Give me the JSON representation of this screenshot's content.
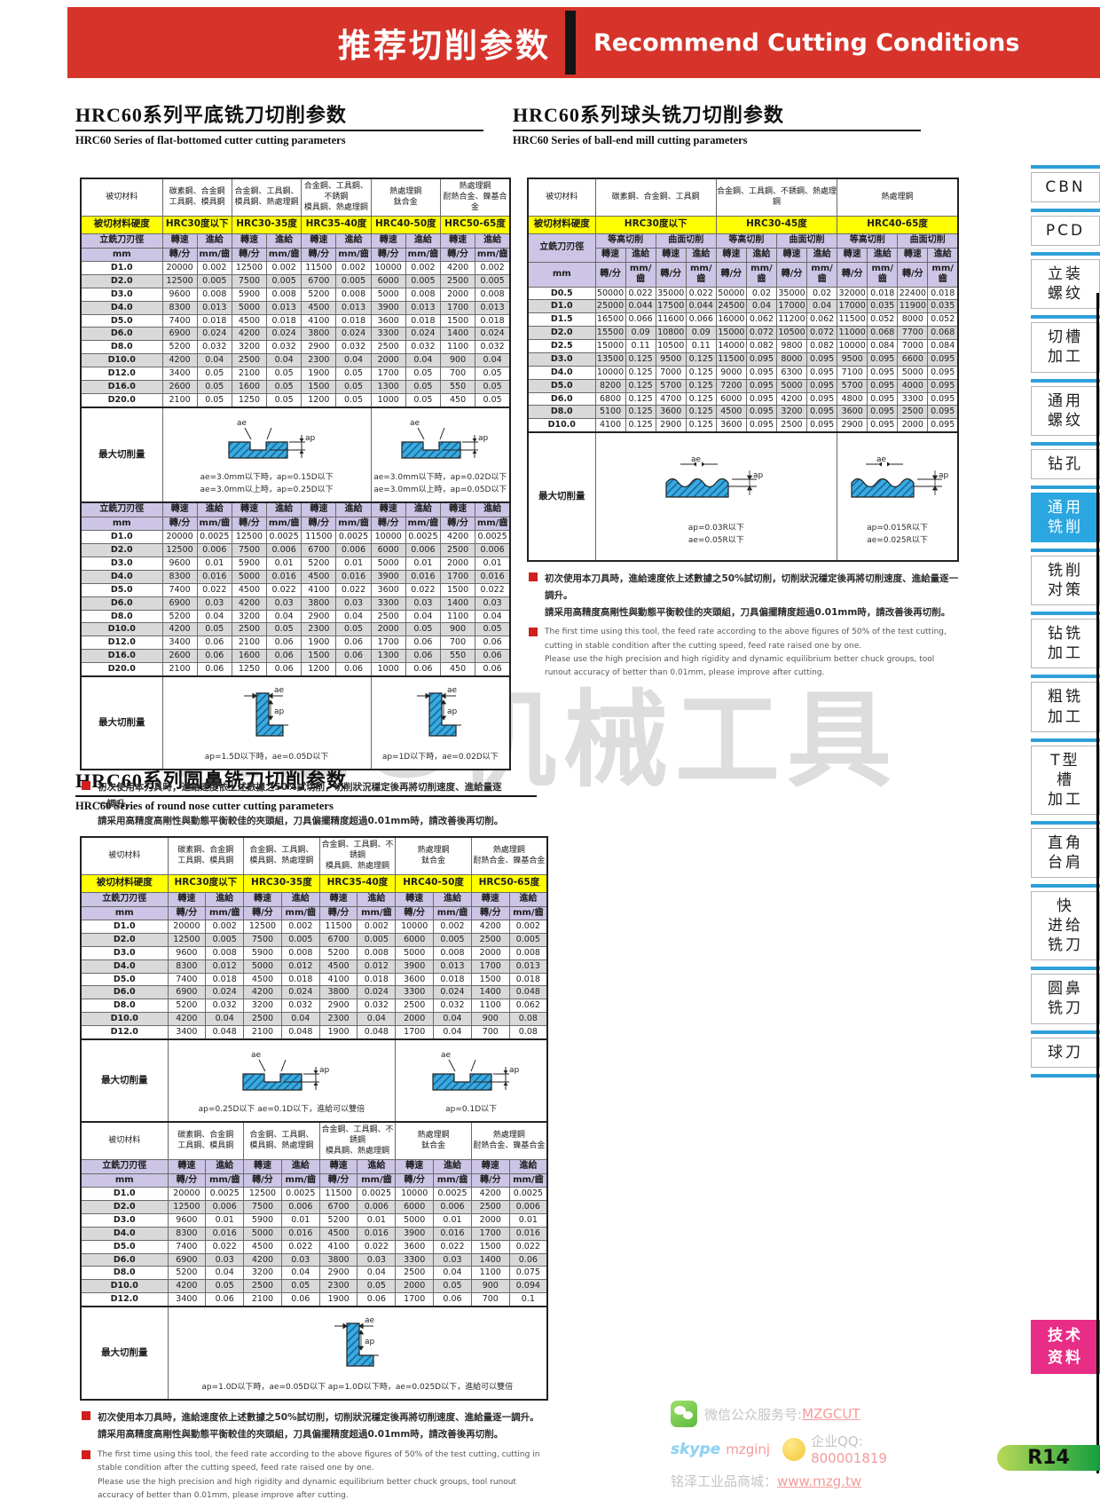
{
  "header": {
    "title_cn": "推荐切削参数",
    "title_en": "Recommend Cutting Conditions"
  },
  "sections": {
    "s1": {
      "cn": "HRC60系列平底铣刀切削参数",
      "en": "HRC60 Series of flat-bottomed cutter cutting parameters"
    },
    "s2": {
      "cn": "HRC60系列球头铣刀切削参数",
      "en": "HRC60  Series of ball-end mill cutting parameters"
    },
    "s3": {
      "cn": "HRC60系列圆鼻铣刀切削参数",
      "en": "HRC60  Series of round nose cutter cutting parameters"
    }
  },
  "labels": {
    "material": "被切材料",
    "hardness": "被切材料硬度",
    "dia": "立銑刀刃徑",
    "mm": "mm",
    "speed": "轉速",
    "feed": "進給",
    "rpm": "轉/分",
    "mmt": "mm/齒",
    "max": "最大切削量",
    "contour": "等高切削",
    "surface": "曲面切削",
    "ae": "ae",
    "ap": "ap"
  },
  "notes": {
    "cn1": "初次使用本刀具時，進給速度依上述數據之50%試切削，切削狀況穩定後再將切削速度、進給量逐一調升。",
    "cn2": "請采用高精度高剛性與動態平衡較佳的夾頭組，刀具偏擺精度超過0.01mm時，請改善後再切削。",
    "en1": "The first time using this tool, the feed rate according to the above figures of 50% of the test cutting, cutting in stable condition after the cutting speed, feed rate raised one by one.",
    "en2": "Please use the high precision and high rigidity and dynamic equilibrium better chuck groups, tool runout accuracy of better than 0.01mm, please improve after cutting."
  },
  "t1": {
    "materials": [
      [
        "碳素鋼、合金鋼",
        "工具鋼、模具鋼"
      ],
      [
        "合金鋼、工具鋼、",
        "模具鋼、熱處理鋼"
      ],
      [
        "合金鋼、工具鋼、不銹鋼",
        "模具鋼、熱處理鋼"
      ],
      [
        "熱處理鋼",
        "鈦合金"
      ],
      [
        "熱處理鋼",
        "耐熱合金、鎳基合金"
      ]
    ],
    "hardness": [
      "HRC30度以下",
      "HRC30-35度",
      "HRC35-40度",
      "HRC40-50度",
      "HRC50-65度"
    ],
    "rows1": [
      [
        "D1.0",
        "20000",
        "0.002",
        "12500",
        "0.002",
        "11500",
        "0.002",
        "10000",
        "0.002",
        "4200",
        "0.002"
      ],
      [
        "D2.0",
        "12500",
        "0.005",
        "7500",
        "0.005",
        "6700",
        "0.005",
        "6000",
        "0.005",
        "2500",
        "0.005"
      ],
      [
        "D3.0",
        "9600",
        "0.008",
        "5900",
        "0.008",
        "5200",
        "0.008",
        "5000",
        "0.008",
        "2000",
        "0.008"
      ],
      [
        "D4.0",
        "8300",
        "0.013",
        "5000",
        "0.013",
        "4500",
        "0.013",
        "3900",
        "0.013",
        "1700",
        "0.013"
      ],
      [
        "D5.0",
        "7400",
        "0.018",
        "4500",
        "0.018",
        "4100",
        "0.018",
        "3600",
        "0.018",
        "1500",
        "0.018"
      ],
      [
        "D6.0",
        "6900",
        "0.024",
        "4200",
        "0.024",
        "3800",
        "0.024",
        "3300",
        "0.024",
        "1400",
        "0.024"
      ],
      [
        "D8.0",
        "5200",
        "0.032",
        "3200",
        "0.032",
        "2900",
        "0.032",
        "2500",
        "0.032",
        "1100",
        "0.032"
      ],
      [
        "D10.0",
        "4200",
        "0.04",
        "2500",
        "0.04",
        "2300",
        "0.04",
        "2000",
        "0.04",
        "900",
        "0.04"
      ],
      [
        "D12.0",
        "3400",
        "0.05",
        "2100",
        "0.05",
        "1900",
        "0.05",
        "1700",
        "0.05",
        "700",
        "0.05"
      ],
      [
        "D16.0",
        "2600",
        "0.05",
        "1600",
        "0.05",
        "1500",
        "0.05",
        "1300",
        "0.05",
        "550",
        "0.05"
      ],
      [
        "D20.0",
        "2100",
        "0.05",
        "1250",
        "0.05",
        "1200",
        "0.05",
        "1000",
        "0.05",
        "450",
        "0.05"
      ]
    ],
    "max1_left": [
      "ae=3.0mm以下時，ap=0.15D以下",
      "ae=3.0mm以上時，ap=0.25D以下"
    ],
    "max1_right": [
      "ae=3.0mm以下時，ap=0.02D以下",
      "ae=3.0mm以上時，ap=0.05D以下"
    ],
    "rows2": [
      [
        "D1.0",
        "20000",
        "0.0025",
        "12500",
        "0.0025",
        "11500",
        "0.0025",
        "10000",
        "0.0025",
        "4200",
        "0.0025"
      ],
      [
        "D2.0",
        "12500",
        "0.006",
        "7500",
        "0.006",
        "6700",
        "0.006",
        "6000",
        "0.006",
        "2500",
        "0.006"
      ],
      [
        "D3.0",
        "9600",
        "0.01",
        "5900",
        "0.01",
        "5200",
        "0.01",
        "5000",
        "0.01",
        "2000",
        "0.01"
      ],
      [
        "D4.0",
        "8300",
        "0.016",
        "5000",
        "0.016",
        "4500",
        "0.016",
        "3900",
        "0.016",
        "1700",
        "0.016"
      ],
      [
        "D5.0",
        "7400",
        "0.022",
        "4500",
        "0.022",
        "4100",
        "0.022",
        "3600",
        "0.022",
        "1500",
        "0.022"
      ],
      [
        "D6.0",
        "6900",
        "0.03",
        "4200",
        "0.03",
        "3800",
        "0.03",
        "3300",
        "0.03",
        "1400",
        "0.03"
      ],
      [
        "D8.0",
        "5200",
        "0.04",
        "3200",
        "0.04",
        "2900",
        "0.04",
        "2500",
        "0.04",
        "1100",
        "0.04"
      ],
      [
        "D10.0",
        "4200",
        "0.05",
        "2500",
        "0.05",
        "2300",
        "0.05",
        "2000",
        "0.05",
        "900",
        "0.05"
      ],
      [
        "D12.0",
        "3400",
        "0.06",
        "2100",
        "0.06",
        "1900",
        "0.06",
        "1700",
        "0.06",
        "700",
        "0.06"
      ],
      [
        "D16.0",
        "2600",
        "0.06",
        "1600",
        "0.06",
        "1500",
        "0.06",
        "1300",
        "0.06",
        "550",
        "0.06"
      ],
      [
        "D20.0",
        "2100",
        "0.06",
        "1250",
        "0.06",
        "1200",
        "0.06",
        "1000",
        "0.06",
        "450",
        "0.06"
      ]
    ],
    "max2_left": [
      "ap=1.5D以下時，ae=0.05D以下"
    ],
    "max2_right": [
      "ap=1D以下時，ae=0.02D以下"
    ]
  },
  "t2": {
    "materials": [
      "碳素鋼、合金鋼、工具鋼",
      "合金鋼、工具鋼、不銹鋼、熱處理鋼",
      "熱處理鋼"
    ],
    "hardness": [
      "HRC30度以下",
      "HRC30-45度",
      "HRC40-65度"
    ],
    "rows": [
      [
        "D0.5",
        "50000",
        "0.022",
        "35000",
        "0.022",
        "50000",
        "0.02",
        "35000",
        "0.02",
        "32000",
        "0.018",
        "22400",
        "0.018"
      ],
      [
        "D1.0",
        "25000",
        "0.044",
        "17500",
        "0.044",
        "24500",
        "0.04",
        "17000",
        "0.04",
        "17000",
        "0.035",
        "11900",
        "0.035"
      ],
      [
        "D1.5",
        "16500",
        "0.066",
        "11600",
        "0.066",
        "16000",
        "0.062",
        "11200",
        "0.062",
        "11500",
        "0.052",
        "8000",
        "0.052"
      ],
      [
        "D2.0",
        "15500",
        "0.09",
        "10800",
        "0.09",
        "15000",
        "0.072",
        "10500",
        "0.072",
        "11000",
        "0.068",
        "7700",
        "0.068"
      ],
      [
        "D2.5",
        "15000",
        "0.11",
        "10500",
        "0.11",
        "14000",
        "0.082",
        "9800",
        "0.082",
        "10000",
        "0.084",
        "7000",
        "0.084"
      ],
      [
        "D3.0",
        "13500",
        "0.125",
        "9500",
        "0.125",
        "11500",
        "0.095",
        "8000",
        "0.095",
        "9500",
        "0.095",
        "6600",
        "0.095"
      ],
      [
        "D4.0",
        "10000",
        "0.125",
        "7000",
        "0.125",
        "9000",
        "0.095",
        "6300",
        "0.095",
        "7100",
        "0.095",
        "5000",
        "0.095"
      ],
      [
        "D5.0",
        "8200",
        "0.125",
        "5700",
        "0.125",
        "7200",
        "0.095",
        "5000",
        "0.095",
        "5700",
        "0.095",
        "4000",
        "0.095"
      ],
      [
        "D6.0",
        "6800",
        "0.125",
        "4700",
        "0.125",
        "6000",
        "0.095",
        "4200",
        "0.095",
        "4800",
        "0.095",
        "3300",
        "0.095"
      ],
      [
        "D8.0",
        "5100",
        "0.125",
        "3600",
        "0.125",
        "4500",
        "0.095",
        "3200",
        "0.095",
        "3600",
        "0.095",
        "2500",
        "0.095"
      ],
      [
        "D10.0",
        "4100",
        "0.125",
        "2900",
        "0.125",
        "3600",
        "0.095",
        "2500",
        "0.095",
        "2900",
        "0.095",
        "2000",
        "0.095"
      ]
    ],
    "max_left": [
      "ap=0.03R以下",
      "ae=0.05R以下"
    ],
    "max_right": [
      "ap=0.015R以下",
      "ae=0.025R以下"
    ]
  },
  "t3": {
    "rows1": [
      [
        "D1.0",
        "20000",
        "0.002",
        "12500",
        "0.002",
        "11500",
        "0.002",
        "10000",
        "0.002",
        "4200",
        "0.002"
      ],
      [
        "D2.0",
        "12500",
        "0.005",
        "7500",
        "0.005",
        "6700",
        "0.005",
        "6000",
        "0.005",
        "2500",
        "0.005"
      ],
      [
        "D3.0",
        "9600",
        "0.008",
        "5900",
        "0.008",
        "5200",
        "0.008",
        "5000",
        "0.008",
        "2000",
        "0.008"
      ],
      [
        "D4.0",
        "8300",
        "0.012",
        "5000",
        "0.012",
        "4500",
        "0.012",
        "3900",
        "0.013",
        "1700",
        "0.013"
      ],
      [
        "D5.0",
        "7400",
        "0.018",
        "4500",
        "0.018",
        "4100",
        "0.018",
        "3600",
        "0.018",
        "1500",
        "0.018"
      ],
      [
        "D6.0",
        "6900",
        "0.024",
        "4200",
        "0.024",
        "3800",
        "0.024",
        "3300",
        "0.024",
        "1400",
        "0.048"
      ],
      [
        "D8.0",
        "5200",
        "0.032",
        "3200",
        "0.032",
        "2900",
        "0.032",
        "2500",
        "0.032",
        "1100",
        "0.062"
      ],
      [
        "D10.0",
        "4200",
        "0.04",
        "2500",
        "0.04",
        "2300",
        "0.04",
        "2000",
        "0.04",
        "900",
        "0.08"
      ],
      [
        "D12.0",
        "3400",
        "0.048",
        "2100",
        "0.048",
        "1900",
        "0.048",
        "1700",
        "0.04",
        "700",
        "0.08"
      ]
    ],
    "max1_left": [
      "ap=0.25D以下  ae=0.1D以下，進給可以雙倍"
    ],
    "max1_right": [
      "ap=0.1D以下"
    ],
    "rows2": [
      [
        "D1.0",
        "20000",
        "0.0025",
        "12500",
        "0.0025",
        "11500",
        "0.0025",
        "10000",
        "0.0025",
        "4200",
        "0.0025"
      ],
      [
        "D2.0",
        "12500",
        "0.006",
        "7500",
        "0.006",
        "6700",
        "0.006",
        "6000",
        "0.006",
        "2500",
        "0.006"
      ],
      [
        "D3.0",
        "9600",
        "0.01",
        "5900",
        "0.01",
        "5200",
        "0.01",
        "5000",
        "0.01",
        "2000",
        "0.01"
      ],
      [
        "D4.0",
        "8300",
        "0.016",
        "5000",
        "0.016",
        "4500",
        "0.016",
        "3900",
        "0.016",
        "1700",
        "0.016"
      ],
      [
        "D5.0",
        "7400",
        "0.022",
        "4500",
        "0.022",
        "4100",
        "0.022",
        "3600",
        "0.022",
        "1500",
        "0.022"
      ],
      [
        "D6.0",
        "6900",
        "0.03",
        "4200",
        "0.03",
        "3800",
        "0.03",
        "3300",
        "0.03",
        "1400",
        "0.06"
      ],
      [
        "D8.0",
        "5200",
        "0.04",
        "3200",
        "0.04",
        "2900",
        "0.04",
        "2500",
        "0.04",
        "1100",
        "0.075"
      ],
      [
        "D10.0",
        "4200",
        "0.05",
        "2500",
        "0.05",
        "2300",
        "0.05",
        "2000",
        "0.05",
        "900",
        "0.094"
      ],
      [
        "D12.0",
        "3400",
        "0.06",
        "2100",
        "0.06",
        "1900",
        "0.06",
        "1700",
        "0.06",
        "700",
        "0.1"
      ]
    ],
    "max2": [
      "ap=1.0D以下時，ae=0.05D以下  ap=1.0D以下時，ae=0.025D以下，進給可以雙倍"
    ]
  },
  "sidebar": {
    "items": [
      {
        "slug": "cbn",
        "label": "CBN",
        "active": false
      },
      {
        "slug": "pcd",
        "label": "PCD",
        "active": false
      },
      {
        "slug": "vertical-thread",
        "label": "立装\n螺纹",
        "active": false
      },
      {
        "slug": "grooving",
        "label": "切槽\n加工",
        "active": false
      },
      {
        "slug": "general-thread",
        "label": "通用\n螺纹",
        "active": false
      },
      {
        "slug": "drilling",
        "label": "钻孔",
        "active": false
      },
      {
        "slug": "general-milling",
        "label": "通用\n铣削",
        "active": true
      },
      {
        "slug": "milling-strategy",
        "label": "铣削\n对策",
        "active": false
      },
      {
        "slug": "drill-milling",
        "label": "钻铣\n加工",
        "active": false
      },
      {
        "slug": "rough-milling",
        "label": "粗铣\n加工",
        "active": false
      },
      {
        "slug": "t-slot",
        "label": "T型\n槽\n加工",
        "active": false
      },
      {
        "slug": "square-shoulder",
        "label": "直角\n台肩",
        "active": false
      },
      {
        "slug": "fast-feed",
        "label": "快\n进给\n铣刀",
        "active": false
      },
      {
        "slug": "round-nose",
        "label": "圆鼻\n铣刀",
        "active": false
      },
      {
        "slug": "ball-cutter",
        "label": "球刀",
        "active": false
      }
    ],
    "tech_label": "技术\n资料"
  },
  "watermark": "MZG机械工具",
  "footer": {
    "wechat_label": "微信公众服务号:",
    "wechat_id": "MZGCUT",
    "skype_name": "mzginj",
    "qq_label": "企业QQ:",
    "qq_number": "800001819",
    "mall_label": "铭泽工业品商城：",
    "mall_url": "www.mzg.tw",
    "page_number": "R14"
  }
}
